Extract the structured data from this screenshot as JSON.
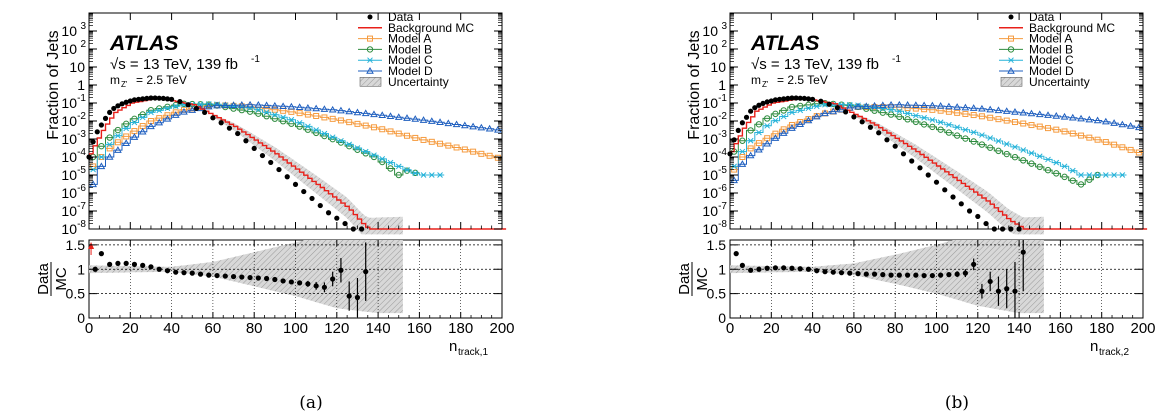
{
  "chart_data": [
    {
      "type": "line",
      "label": "(a)",
      "experiment": "ATLAS",
      "energy_text": "√s = 13 TeV, 139 fb",
      "energy_sup": "-1",
      "mass_text": "m",
      "mass_sub": "Z'",
      "mass_value": "= 2.5 TeV",
      "ylabel_top": "Fraction of Jets",
      "ylabel_ratio_num": "Data",
      "ylabel_ratio_den": "MC",
      "xlabel_main": "n",
      "xlabel_sub": "track,1",
      "xlim": [
        0,
        200
      ],
      "ylim_top": [
        1e-08,
        10000
      ],
      "yscale_top": "log",
      "ylim_ratio": [
        0,
        1.6
      ],
      "xticks": [
        "0",
        "20",
        "40",
        "60",
        "80",
        "100",
        "120",
        "140",
        "160",
        "180",
        "200"
      ],
      "yticks_top": [
        {
          "v": 1e-08,
          "m": "10",
          "e": "-8"
        },
        {
          "v": 1e-07,
          "m": "10",
          "e": "-7"
        },
        {
          "v": 1e-06,
          "m": "10",
          "e": "-6"
        },
        {
          "v": 1e-05,
          "m": "10",
          "e": "-5"
        },
        {
          "v": 0.0001,
          "m": "10",
          "e": "-4"
        },
        {
          "v": 0.001,
          "m": "10",
          "e": "-3"
        },
        {
          "v": 0.01,
          "m": "10",
          "e": "-2"
        },
        {
          "v": 0.1,
          "m": "10",
          "e": "-1"
        },
        {
          "v": 1,
          "m": "1",
          "e": ""
        },
        {
          "v": 10,
          "m": "10",
          "e": ""
        },
        {
          "v": 100,
          "m": "10",
          "e": "2"
        },
        {
          "v": 1000,
          "m": "10",
          "e": "3"
        }
      ],
      "yticks_ratio": [
        {
          "v": 0,
          "t": "0"
        },
        {
          "v": 0.5,
          "t": "0.5"
        },
        {
          "v": 1,
          "t": "1"
        },
        {
          "v": 1.5,
          "t": "1.5"
        }
      ],
      "legend": [
        {
          "label": "Data",
          "style": "data"
        },
        {
          "label": "Background MC",
          "style": "bkg"
        },
        {
          "label": "Model A",
          "style": "A"
        },
        {
          "label": "Model B",
          "style": "B"
        },
        {
          "label": "Model C",
          "style": "C"
        },
        {
          "label": "Model D",
          "style": "D"
        },
        {
          "label": "Uncertainty",
          "style": "unc"
        }
      ],
      "colors": {
        "bkg": "#e8201a",
        "A": "#f59b3f",
        "B": "#2e8b3e",
        "C": "#27b3d9",
        "D": "#1f5fbf",
        "data": "#000000",
        "unc": "#9a9a9a"
      },
      "background_mc": {
        "peak_x": 33,
        "peak_y": 0.19,
        "x": [
          0,
          3,
          6,
          9,
          12,
          20,
          33,
          50,
          70,
          90,
          110,
          125,
          132,
          135,
          150
        ],
        "y": [
          0.00015,
          0.0007,
          0.003,
          0.01,
          0.03,
          0.1,
          0.19,
          0.08,
          0.005,
          0.00015,
          3e-06,
          1.5e-07,
          2e-08,
          1e-08,
          1e-08
        ]
      },
      "series": [
        {
          "name": "Model A",
          "key": "A",
          "x": [
            3,
            6,
            10,
            15,
            20,
            30,
            45,
            60,
            80,
            100,
            120,
            140,
            160,
            180,
            190,
            200
          ],
          "y": [
            3e-05,
            0.0001,
            0.0003,
            0.0008,
            0.002,
            0.01,
            0.04,
            0.08,
            0.06,
            0.03,
            0.012,
            0.004,
            0.001,
            0.0003,
            0.00015,
            8e-05
          ]
        },
        {
          "name": "Model B",
          "key": "B",
          "x": [
            3,
            6,
            10,
            15,
            20,
            30,
            45,
            60,
            80,
            100,
            120,
            140,
            150,
            155,
            160
          ],
          "y": [
            0.0001,
            0.0004,
            0.0012,
            0.004,
            0.01,
            0.04,
            0.09,
            0.08,
            0.03,
            0.006,
            0.0008,
            8e-05,
            1e-05,
            2e-05,
            1e-05
          ]
        },
        {
          "name": "Model C",
          "key": "C",
          "x": [
            3,
            6,
            10,
            15,
            20,
            30,
            45,
            60,
            80,
            100,
            120,
            140,
            150,
            160,
            170
          ],
          "y": [
            2e-05,
            0.0001,
            0.0005,
            0.002,
            0.006,
            0.03,
            0.08,
            0.09,
            0.05,
            0.01,
            0.001,
            0.0001,
            3e-05,
            1e-05,
            1e-05
          ]
        },
        {
          "name": "Model D",
          "key": "D",
          "x": [
            3,
            6,
            10,
            15,
            20,
            30,
            45,
            60,
            80,
            100,
            120,
            140,
            160,
            180,
            200
          ],
          "y": [
            3e-06,
            3e-05,
            0.0001,
            0.0003,
            0.0009,
            0.005,
            0.03,
            0.07,
            0.08,
            0.06,
            0.04,
            0.022,
            0.012,
            0.006,
            0.003
          ]
        }
      ],
      "data_points": {
        "x": [
          0,
          2,
          4,
          6,
          8,
          10,
          12,
          14,
          16,
          18,
          20,
          22,
          24,
          26,
          28,
          30,
          32,
          34,
          36,
          38,
          40,
          44,
          48,
          52,
          56,
          60,
          64,
          68,
          72,
          76,
          80,
          84,
          88,
          92,
          96,
          100,
          104,
          108,
          112,
          116,
          120,
          124,
          128,
          132
        ],
        "y": [
          0.0001,
          0.0007,
          0.0025,
          0.006,
          0.014,
          0.03,
          0.05,
          0.07,
          0.09,
          0.11,
          0.13,
          0.15,
          0.16,
          0.17,
          0.18,
          0.19,
          0.19,
          0.185,
          0.18,
          0.17,
          0.16,
          0.12,
          0.08,
          0.05,
          0.03,
          0.015,
          0.008,
          0.004,
          0.002,
          0.0008,
          0.0003,
          0.00012,
          5e-05,
          2e-05,
          8e-06,
          3e-06,
          1.2e-06,
          5e-07,
          2e-07,
          8e-08,
          4e-08,
          2e-08,
          1e-08,
          1e-08
        ]
      },
      "uncertainty_band": {
        "x_from": 60,
        "x_to": 152
      },
      "ratio_points": {
        "x": [
          3,
          6,
          10,
          14,
          18,
          22,
          26,
          30,
          34,
          38,
          42,
          46,
          50,
          54,
          58,
          62,
          66,
          70,
          74,
          78,
          82,
          86,
          90,
          94,
          98,
          102,
          106,
          110,
          114,
          118,
          122,
          126,
          130,
          134
        ],
        "y": [
          1.0,
          1.32,
          1.1,
          1.12,
          1.12,
          1.1,
          1.08,
          1.05,
          1.0,
          0.97,
          0.94,
          0.93,
          0.92,
          0.9,
          0.88,
          0.87,
          0.86,
          0.85,
          0.84,
          0.83,
          0.82,
          0.81,
          0.79,
          0.76,
          0.74,
          0.72,
          0.7,
          0.66,
          0.63,
          0.8,
          0.98,
          0.45,
          0.42,
          0.95
        ],
        "err": [
          0.02,
          0.02,
          0.02,
          0.02,
          0.02,
          0.02,
          0.02,
          0.02,
          0.02,
          0.02,
          0.02,
          0.02,
          0.02,
          0.02,
          0.02,
          0.02,
          0.02,
          0.02,
          0.02,
          0.02,
          0.02,
          0.02,
          0.03,
          0.03,
          0.04,
          0.05,
          0.06,
          0.08,
          0.1,
          0.15,
          0.25,
          0.3,
          0.4,
          0.6
        ]
      },
      "ratio_band_half_width": {
        "x": [
          0,
          40,
          60,
          80,
          100,
          120,
          140,
          152
        ],
        "h": [
          0.08,
          0.05,
          0.15,
          0.35,
          0.55,
          0.8,
          0.9,
          0.9
        ]
      },
      "ratio_overflow_marker": {
        "x": 1,
        "color": "#e8201a"
      }
    },
    {
      "type": "line",
      "label": "(b)",
      "experiment": "ATLAS",
      "energy_text": "√s = 13 TeV, 139 fb",
      "energy_sup": "-1",
      "mass_text": "m",
      "mass_sub": "Z'",
      "mass_value": "= 2.5 TeV",
      "ylabel_top": "Fraction of Jets",
      "ylabel_ratio_num": "Data",
      "ylabel_ratio_den": "MC",
      "xlabel_main": "n",
      "xlabel_sub": "track,2",
      "xlim": [
        0,
        200
      ],
      "ylim_top": [
        1e-08,
        10000
      ],
      "yscale_top": "log",
      "ylim_ratio": [
        0,
        1.6
      ],
      "xticks": [
        "0",
        "20",
        "40",
        "60",
        "80",
        "100",
        "120",
        "140",
        "160",
        "180",
        "200"
      ],
      "yticks_top": [
        {
          "v": 1e-08,
          "m": "10",
          "e": "-8"
        },
        {
          "v": 1e-07,
          "m": "10",
          "e": "-7"
        },
        {
          "v": 1e-06,
          "m": "10",
          "e": "-6"
        },
        {
          "v": 1e-05,
          "m": "10",
          "e": "-5"
        },
        {
          "v": 0.0001,
          "m": "10",
          "e": "-4"
        },
        {
          "v": 0.001,
          "m": "10",
          "e": "-3"
        },
        {
          "v": 0.01,
          "m": "10",
          "e": "-2"
        },
        {
          "v": 0.1,
          "m": "10",
          "e": "-1"
        },
        {
          "v": 1,
          "m": "1",
          "e": ""
        },
        {
          "v": 10,
          "m": "10",
          "e": ""
        },
        {
          "v": 100,
          "m": "10",
          "e": "2"
        },
        {
          "v": 1000,
          "m": "10",
          "e": "3"
        }
      ],
      "yticks_ratio": [
        {
          "v": 0,
          "t": "0"
        },
        {
          "v": 0.5,
          "t": "0.5"
        },
        {
          "v": 1,
          "t": "1"
        },
        {
          "v": 1.5,
          "t": "1.5"
        }
      ],
      "legend": [
        {
          "label": "Data",
          "style": "data"
        },
        {
          "label": "Background MC",
          "style": "bkg"
        },
        {
          "label": "Model A",
          "style": "A"
        },
        {
          "label": "Model B",
          "style": "B"
        },
        {
          "label": "Model C",
          "style": "C"
        },
        {
          "label": "Model D",
          "style": "D"
        },
        {
          "label": "Uncertainty",
          "style": "unc"
        }
      ],
      "colors": {
        "bkg": "#e8201a",
        "A": "#f59b3f",
        "B": "#2e8b3e",
        "C": "#27b3d9",
        "D": "#1f5fbf",
        "data": "#000000",
        "unc": "#9a9a9a"
      },
      "background_mc": {
        "x": [
          0,
          3,
          6,
          9,
          12,
          20,
          35,
          50,
          70,
          90,
          110,
          125,
          135,
          142,
          150
        ],
        "y": [
          0.0002,
          0.0009,
          0.004,
          0.012,
          0.035,
          0.1,
          0.19,
          0.09,
          0.006,
          0.0002,
          5e-06,
          3e-07,
          3e-08,
          1e-08,
          1e-08
        ]
      },
      "series": [
        {
          "name": "Model A",
          "key": "A",
          "x": [
            3,
            6,
            10,
            15,
            20,
            30,
            45,
            60,
            80,
            100,
            120,
            140,
            160,
            180,
            200
          ],
          "y": [
            2e-05,
            0.0001,
            0.0003,
            0.0007,
            0.0015,
            0.006,
            0.025,
            0.06,
            0.06,
            0.04,
            0.02,
            0.008,
            0.003,
            0.0008,
            0.00015
          ]
        },
        {
          "name": "Model B",
          "key": "B",
          "x": [
            3,
            6,
            10,
            15,
            20,
            30,
            45,
            60,
            80,
            100,
            120,
            140,
            160,
            170,
            178
          ],
          "y": [
            0.0002,
            0.0008,
            0.003,
            0.008,
            0.02,
            0.06,
            0.1,
            0.07,
            0.02,
            0.004,
            0.0006,
            8e-05,
            1e-05,
            3e-06,
            1e-05
          ]
        },
        {
          "name": "Model C",
          "key": "C",
          "x": [
            3,
            6,
            10,
            15,
            20,
            30,
            45,
            60,
            80,
            100,
            120,
            140,
            160,
            170,
            180,
            192
          ],
          "y": [
            3e-05,
            0.0002,
            0.0008,
            0.003,
            0.008,
            0.03,
            0.08,
            0.08,
            0.04,
            0.01,
            0.002,
            0.0003,
            4e-05,
            1e-05,
            1e-05,
            1e-05
          ]
        },
        {
          "name": "Model D",
          "key": "D",
          "x": [
            3,
            6,
            10,
            15,
            20,
            30,
            45,
            60,
            80,
            100,
            120,
            140,
            160,
            180,
            200
          ],
          "y": [
            5e-06,
            4e-05,
            0.00012,
            0.0003,
            0.0008,
            0.004,
            0.025,
            0.06,
            0.08,
            0.07,
            0.05,
            0.03,
            0.018,
            0.01,
            0.004
          ]
        }
      ],
      "data_points": {
        "x": [
          0,
          2,
          4,
          6,
          8,
          10,
          12,
          14,
          16,
          18,
          20,
          22,
          24,
          26,
          28,
          30,
          32,
          34,
          36,
          38,
          40,
          44,
          48,
          52,
          56,
          60,
          64,
          68,
          72,
          76,
          80,
          84,
          88,
          92,
          96,
          100,
          104,
          108,
          112,
          116,
          120,
          124,
          128,
          132,
          136,
          140
        ],
        "y": [
          0.00015,
          0.0009,
          0.003,
          0.008,
          0.016,
          0.035,
          0.055,
          0.075,
          0.095,
          0.115,
          0.13,
          0.15,
          0.16,
          0.17,
          0.18,
          0.19,
          0.19,
          0.185,
          0.18,
          0.17,
          0.16,
          0.125,
          0.085,
          0.055,
          0.032,
          0.017,
          0.009,
          0.0045,
          0.0022,
          0.0009,
          0.0004,
          0.00015,
          6e-05,
          2.5e-05,
          1e-05,
          4e-06,
          1.5e-06,
          6e-07,
          2.5e-07,
          1e-07,
          5e-08,
          2e-08,
          1e-08,
          1e-08,
          1e-08,
          1e-08
        ]
      },
      "uncertainty_band": {
        "x_from": 60,
        "x_to": 152
      },
      "ratio_points": {
        "x": [
          3,
          6,
          10,
          14,
          18,
          22,
          26,
          30,
          34,
          38,
          42,
          46,
          50,
          54,
          58,
          62,
          66,
          70,
          74,
          78,
          82,
          86,
          90,
          94,
          98,
          102,
          106,
          110,
          114,
          118,
          122,
          126,
          130,
          134,
          138,
          142
        ],
        "y": [
          1.32,
          1.08,
          0.98,
          1.0,
          1.02,
          1.03,
          1.03,
          1.02,
          1.01,
          1.0,
          0.97,
          0.95,
          0.94,
          0.93,
          0.92,
          0.91,
          0.9,
          0.9,
          0.89,
          0.88,
          0.88,
          0.88,
          0.88,
          0.87,
          0.87,
          0.88,
          0.89,
          0.9,
          0.92,
          1.1,
          0.55,
          0.75,
          0.55,
          0.6,
          0.55,
          1.35
        ],
        "err": [
          0.02,
          0.02,
          0.02,
          0.02,
          0.02,
          0.02,
          0.02,
          0.02,
          0.02,
          0.02,
          0.02,
          0.02,
          0.02,
          0.02,
          0.02,
          0.02,
          0.02,
          0.02,
          0.02,
          0.02,
          0.02,
          0.02,
          0.02,
          0.03,
          0.03,
          0.04,
          0.05,
          0.06,
          0.08,
          0.12,
          0.15,
          0.2,
          0.3,
          0.4,
          0.6,
          0.8
        ]
      },
      "ratio_band_half_width": {
        "x": [
          0,
          40,
          60,
          80,
          100,
          120,
          140,
          152
        ],
        "h": [
          0.08,
          0.05,
          0.12,
          0.3,
          0.5,
          0.75,
          0.9,
          0.9
        ]
      },
      "ratio_overflow_marker": null
    }
  ]
}
